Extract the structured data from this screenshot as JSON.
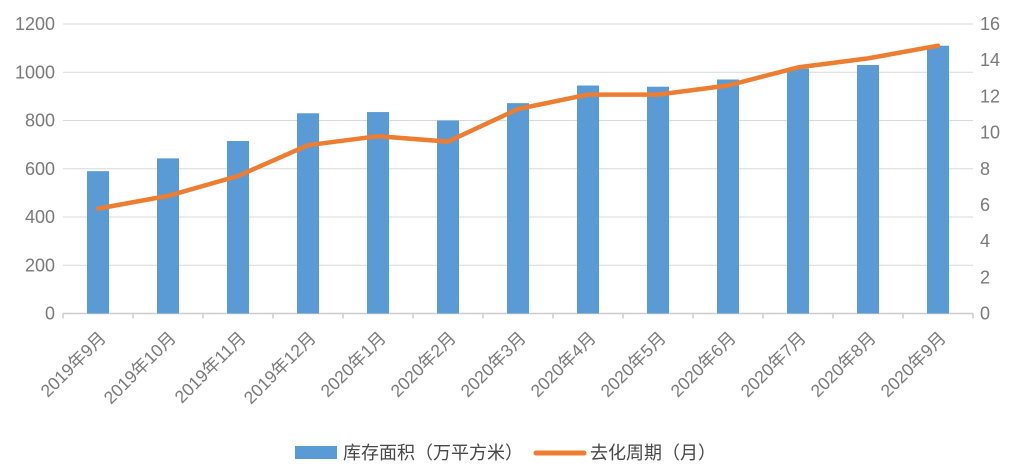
{
  "chart_data": {
    "type": "bar",
    "subtype": "combo-bar-line",
    "title": "",
    "categories": [
      "2019年9月",
      "2019年10月",
      "2019年11月",
      "2019年12月",
      "2020年1月",
      "2020年2月",
      "2020年3月",
      "2020年4月",
      "2020年5月",
      "2020年6月",
      "2020年7月",
      "2020年8月",
      "2020年9月"
    ],
    "series": [
      {
        "name": "库存面积（万平方米）",
        "type": "bar",
        "axis": "left",
        "color": "#5B9BD5",
        "values": [
          590,
          643,
          715,
          830,
          835,
          800,
          872,
          945,
          940,
          970,
          1015,
          1030,
          1110
        ]
      },
      {
        "name": "去化周期（月）",
        "type": "line",
        "axis": "right",
        "color": "#ED7D31",
        "values": [
          5.8,
          6.5,
          7.6,
          9.3,
          9.8,
          9.5,
          11.3,
          12.1,
          12.1,
          12.6,
          13.6,
          14.1,
          14.8
        ]
      }
    ],
    "left_axis": {
      "min": 0,
      "max": 1200,
      "step": 200,
      "tick_labels": [
        "0",
        "200",
        "400",
        "600",
        "800",
        "1000",
        "1200"
      ]
    },
    "right_axis": {
      "min": 0,
      "max": 16,
      "step": 2,
      "tick_labels": [
        "0",
        "2",
        "4",
        "6",
        "8",
        "10",
        "12",
        "14",
        "16"
      ]
    },
    "grid": true,
    "legend_position": "bottom"
  },
  "colors": {
    "bar": "#5B9BD5",
    "line": "#ED7D31",
    "gridline": "#D9D9D9",
    "axis_line": "#CCCCCC",
    "axis_text": "#7A7A7A",
    "legend_text": "#484848",
    "background": "#FFFFFF"
  }
}
